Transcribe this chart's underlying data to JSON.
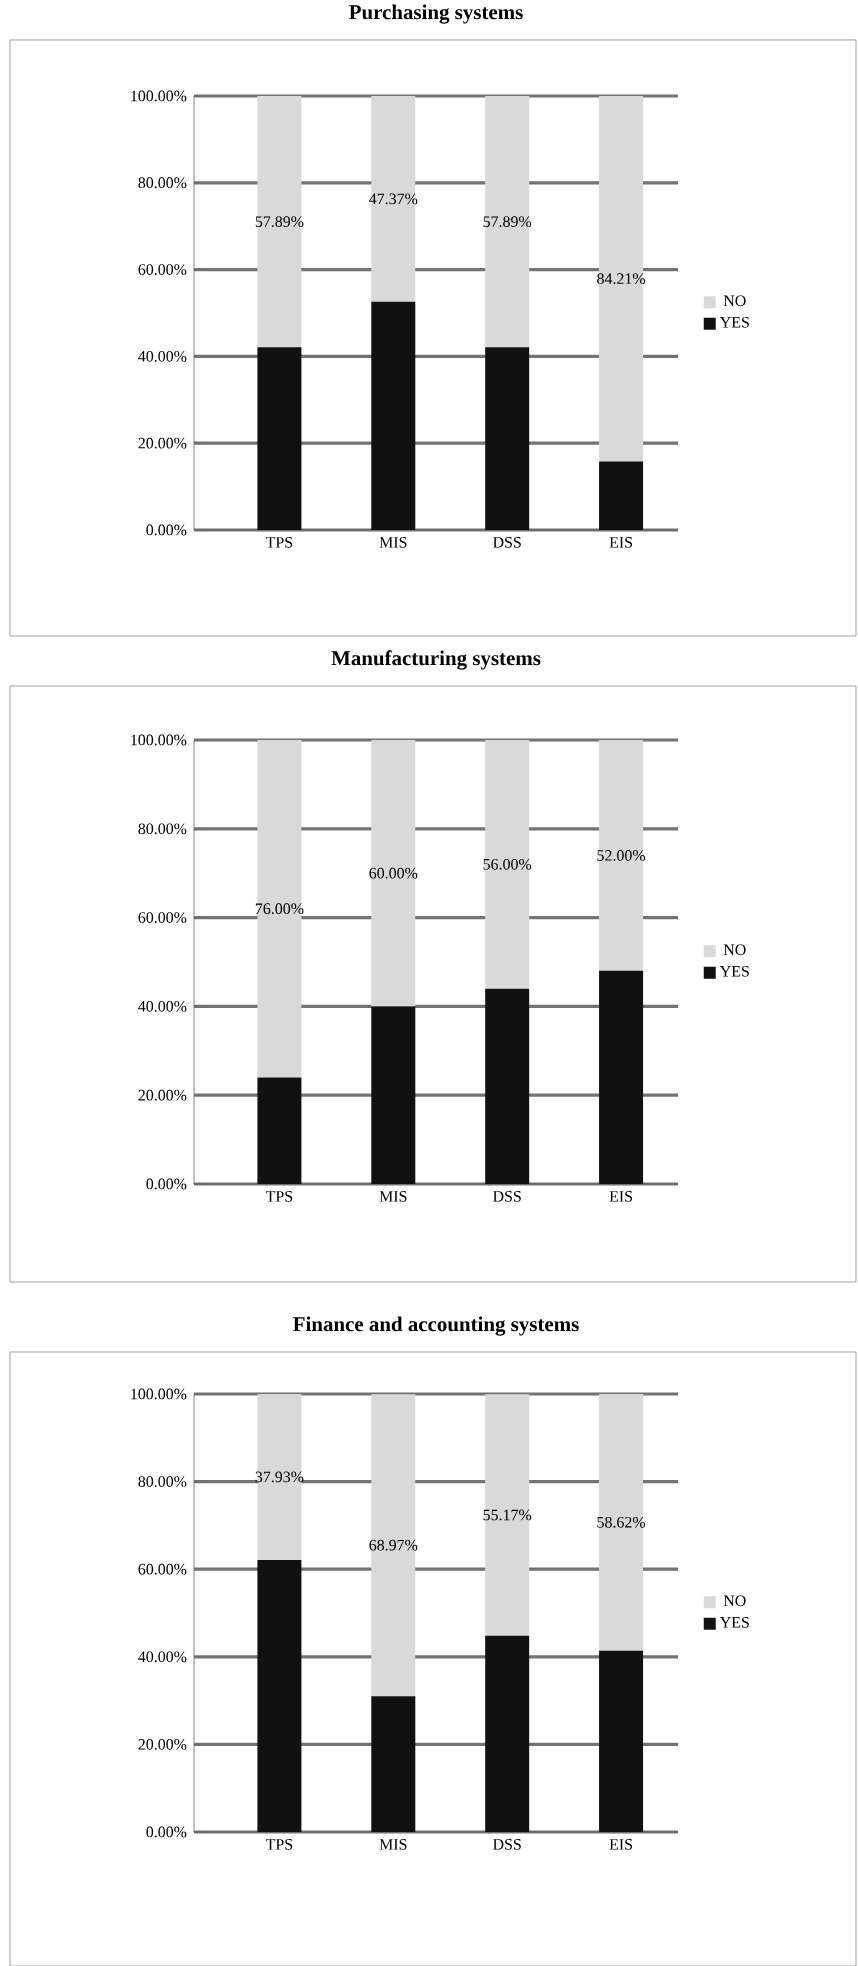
{
  "chart_data": [
    {
      "type": "bar",
      "title": "Purchasing systems",
      "stacked": true,
      "categories": [
        "TPS",
        "MIS",
        "DSS",
        "EIS"
      ],
      "ylim": [
        0,
        100
      ],
      "yticks": [
        {
          "value": 0,
          "label": "0.00%"
        },
        {
          "value": 20,
          "label": "20.00%"
        },
        {
          "value": 40,
          "label": "40.00%"
        },
        {
          "value": 60,
          "label": "60.00%"
        },
        {
          "value": 80,
          "label": "80.00%"
        },
        {
          "value": 100,
          "label": "100.00%"
        }
      ],
      "grid": "y",
      "legend": "right",
      "series": [
        {
          "name": "YES",
          "color": "#111111",
          "values": [
            42.1,
            52.6,
            42.1,
            15.8
          ]
        },
        {
          "name": "NO",
          "color": "#d9d9d9",
          "values": [
            57.89,
            47.37,
            57.89,
            84.21
          ],
          "value_labels": [
            "57.89%",
            "47.37%",
            "57.89%",
            "84.21%"
          ]
        }
      ]
    },
    {
      "type": "bar",
      "title": "Manufacturing systems",
      "stacked": true,
      "categories": [
        "TPS",
        "MIS",
        "DSS",
        "EIS"
      ],
      "ylim": [
        0,
        100
      ],
      "yticks": [
        {
          "value": 0,
          "label": "0.00%"
        },
        {
          "value": 20,
          "label": "20.00%"
        },
        {
          "value": 40,
          "label": "40.00%"
        },
        {
          "value": 60,
          "label": "60.00%"
        },
        {
          "value": 80,
          "label": "80.00%"
        },
        {
          "value": 100,
          "label": "100.00%"
        }
      ],
      "grid": "y",
      "legend": "right",
      "series": [
        {
          "name": "YES",
          "color": "#111111",
          "values": [
            24,
            40,
            44,
            48
          ]
        },
        {
          "name": "NO",
          "color": "#d9d9d9",
          "values": [
            76,
            60,
            56,
            52
          ],
          "value_labels": [
            "76.00%",
            "60.00%",
            "56.00%",
            "52.00%"
          ]
        }
      ]
    },
    {
      "type": "bar",
      "title": "Finance and accounting systems",
      "stacked": true,
      "categories": [
        "TPS",
        "MIS",
        "DSS",
        "EIS"
      ],
      "ylim": [
        0,
        100
      ],
      "yticks": [
        {
          "value": 0,
          "label": "0.00%"
        },
        {
          "value": 20,
          "label": "20.00%"
        },
        {
          "value": 40,
          "label": "40.00%"
        },
        {
          "value": 60,
          "label": "60.00%"
        },
        {
          "value": 80,
          "label": "80.00%"
        },
        {
          "value": 100,
          "label": "100.00%"
        }
      ],
      "grid": "y",
      "legend": "right",
      "series": [
        {
          "name": "YES",
          "color": "#111111",
          "values": [
            62.1,
            31.0,
            44.8,
            41.4
          ]
        },
        {
          "name": "NO",
          "color": "#d9d9d9",
          "values": [
            37.93,
            68.97,
            55.17,
            58.62
          ],
          "value_labels": [
            "37.93%",
            "68.97%",
            "55.17%",
            "58.62%"
          ]
        }
      ]
    }
  ]
}
